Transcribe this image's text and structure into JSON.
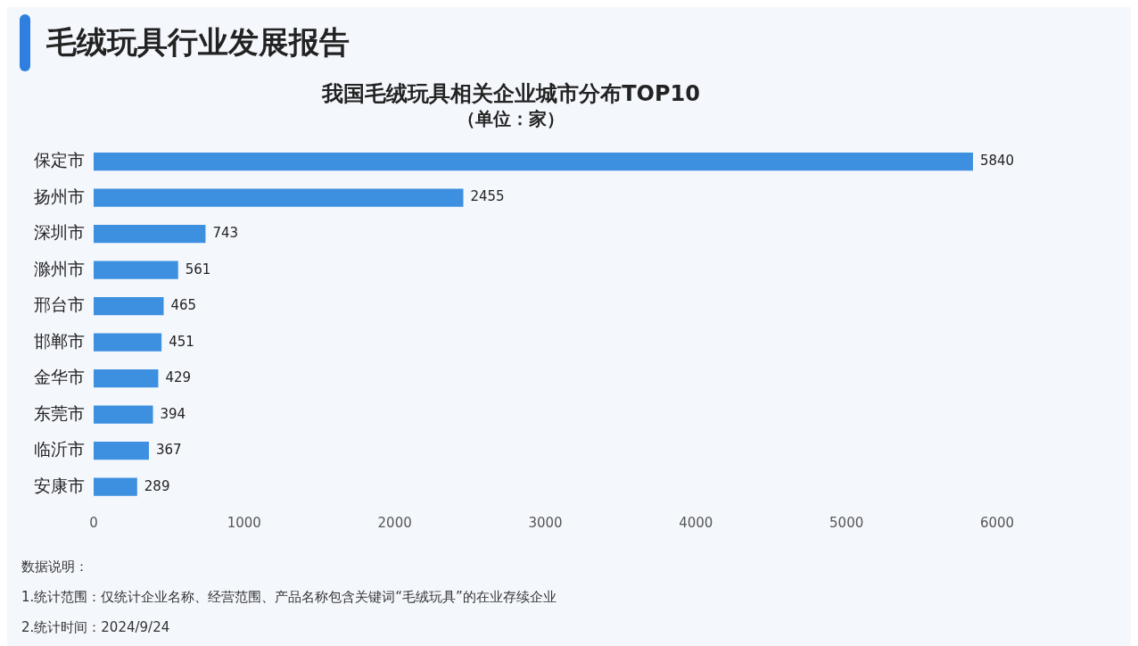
{
  "chart_data": {
    "type": "bar",
    "orientation": "horizontal",
    "title": "我国毛绒玩具相关企业城市分布TOP10",
    "subtitle": "（单位：家）",
    "categories": [
      "保定市",
      "扬州市",
      "深圳市",
      "滁州市",
      "邢台市",
      "邯郸市",
      "金华市",
      "东莞市",
      "临沂市",
      "安康市"
    ],
    "values": [
      5840,
      2455,
      743,
      561,
      465,
      451,
      429,
      394,
      367,
      289
    ],
    "color": "#3d8fe0",
    "xlim": [
      0,
      6000
    ],
    "xticks": [
      0,
      1000,
      2000,
      3000,
      4000,
      5000,
      6000
    ],
    "data_labels": true,
    "annotations": [
      "毛绒玩具行业发展报告",
      "数据说明：",
      "1.统计范围：仅统计企业名称、经营范围、产品名称包含关键词“毛绒玩具”的在业存续企业",
      "2.统计时间：2024/9/24"
    ]
  }
}
